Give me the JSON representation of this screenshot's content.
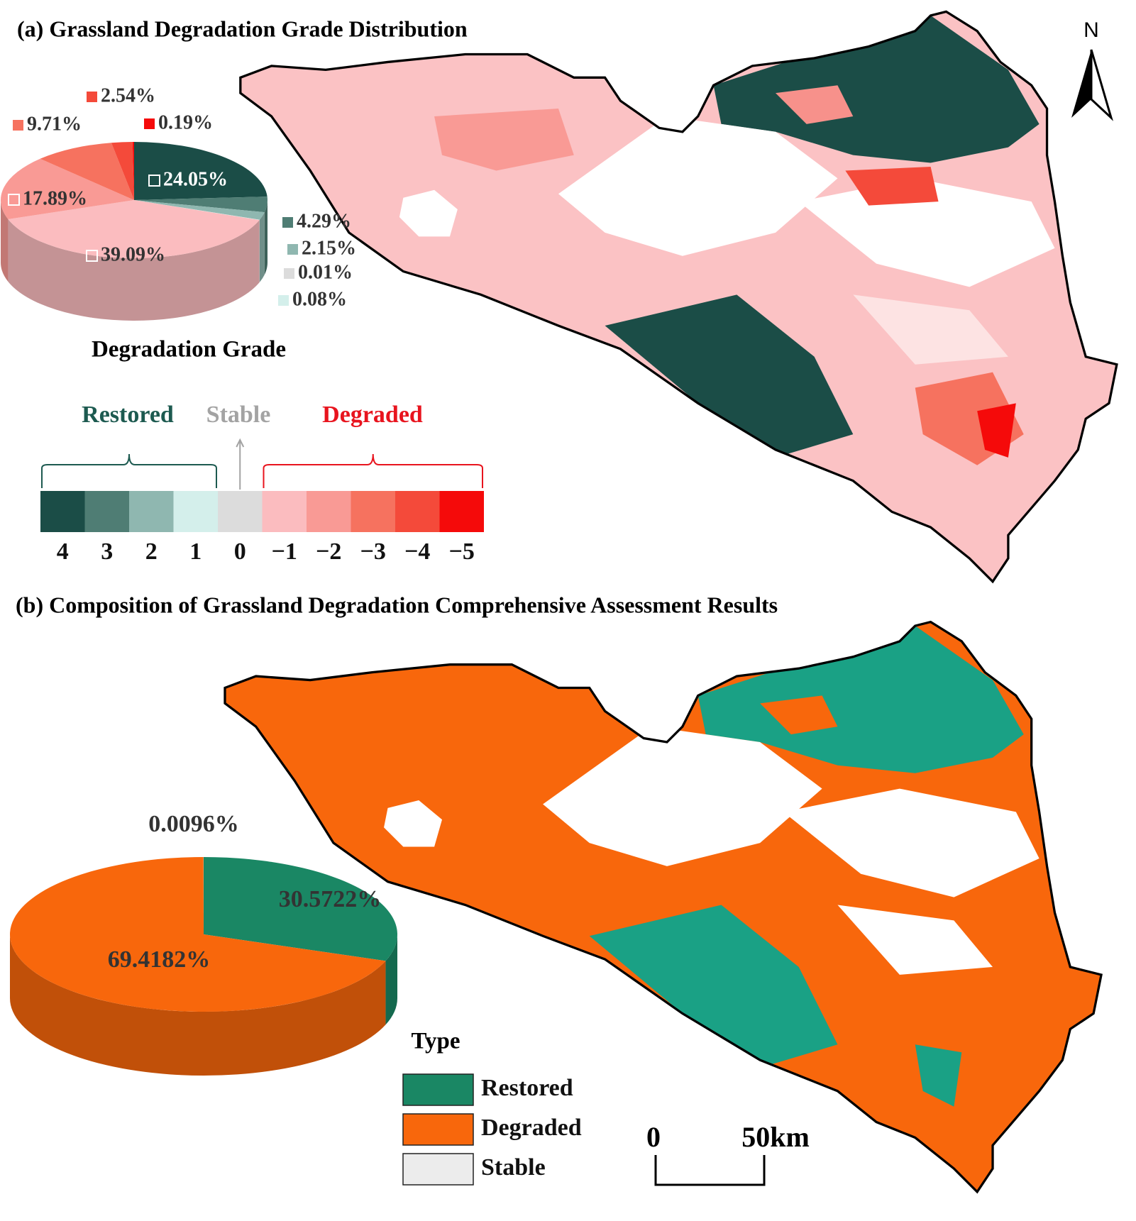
{
  "chart_data": [
    {
      "type": "pie3d",
      "title": "(a) Grassland Degradation Grade Distribution",
      "legend_title": "Degradation Grade",
      "categories": [
        "4",
        "3",
        "2",
        "1",
        "0",
        "−1",
        "−2",
        "−3",
        "−4",
        "−5"
      ],
      "values": [
        24.05,
        4.29,
        2.15,
        0.08,
        0.01,
        39.09,
        17.89,
        9.71,
        2.54,
        0.19
      ],
      "value_labels": [
        "24.05%",
        "4.29%",
        "2.15%",
        "0.08%",
        "0.01%",
        "39.09%",
        "17.89%",
        "9.71%",
        "2.54%",
        "0.19%"
      ],
      "colors": [
        "#1b4d47",
        "#4f7d74",
        "#8fb7b0",
        "#d4efeb",
        "#dcdcdc",
        "#fbbcbf",
        "#f99a95",
        "#f6725f",
        "#f44a3a",
        "#f50a0a"
      ],
      "groups": [
        {
          "name": "Restored",
          "color": "#1d5a50"
        },
        {
          "name": "Stable",
          "color": "#a3a3a3"
        },
        {
          "name": "Degraded",
          "color": "#e8141e"
        }
      ]
    },
    {
      "type": "pie3d",
      "title": "(b) Composition of Grassland Degradation Comprehensive Assessment Results",
      "legend_title": "Type",
      "categories": [
        "Restored",
        "Degraded",
        "Stable"
      ],
      "values": [
        30.5722,
        69.4182,
        0.0096
      ],
      "value_labels": [
        "30.5722%",
        "69.4182%",
        "0.0096%"
      ],
      "colors": [
        "#1a8764",
        "#f8670c",
        "#ececec"
      ]
    }
  ],
  "north_label": "N",
  "scale_bar": {
    "labels": [
      "0",
      "50km"
    ]
  }
}
